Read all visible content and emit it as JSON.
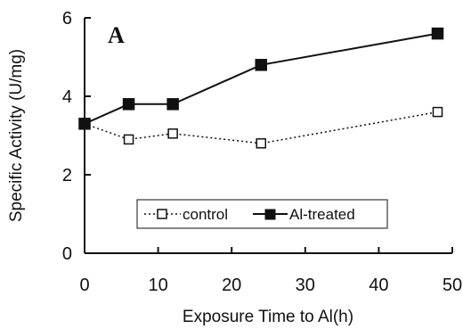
{
  "chart_data": {
    "type": "line",
    "panel_label": "A",
    "xlabel": "Exposure Time to Al(h)",
    "ylabel": "Specific Activity (U/mg)",
    "xlim": [
      0,
      50
    ],
    "ylim": [
      0,
      6
    ],
    "xticks": [
      0,
      10,
      20,
      30,
      40,
      50
    ],
    "yticks": [
      0,
      2,
      4,
      6
    ],
    "grid": false,
    "legend_position": "bottom-center",
    "series": [
      {
        "name": "control",
        "marker": "open-square",
        "line_style": "dotted",
        "x": [
          0,
          6,
          12,
          24,
          48
        ],
        "y": [
          3.3,
          2.9,
          3.05,
          2.8,
          3.6
        ]
      },
      {
        "name": "Al-treated",
        "marker": "filled-square",
        "line_style": "solid",
        "x": [
          0,
          6,
          12,
          24,
          48
        ],
        "y": [
          3.3,
          3.8,
          3.8,
          4.8,
          5.6
        ]
      }
    ]
  }
}
